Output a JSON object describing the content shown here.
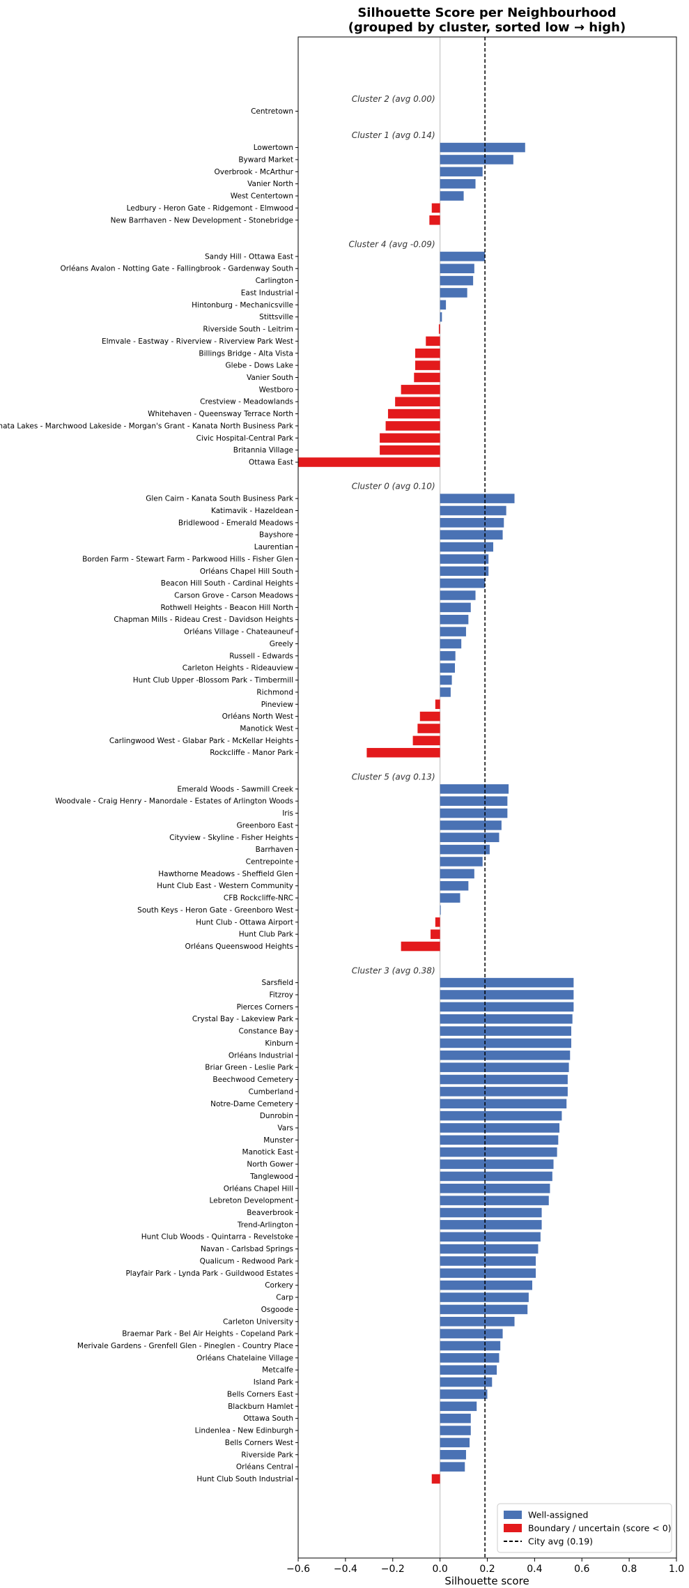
{
  "chart_data": {
    "type": "bar",
    "orientation": "horizontal",
    "title": "Silhouette Score per Neighbourhood",
    "subtitle": "(grouped by cluster, sorted low → high)",
    "xlabel": "Silhouette score",
    "xlim": [
      -0.6,
      1.0
    ],
    "xticks": [
      "−0.6",
      "−0.4",
      "−0.2",
      "0.0",
      "0.2",
      "0.4",
      "0.6",
      "0.8",
      "1.0"
    ],
    "xtick_values": [
      -0.6,
      -0.4,
      -0.2,
      0.0,
      0.2,
      0.4,
      0.6,
      0.8,
      1.0
    ],
    "city_avg": 0.19,
    "grid": false,
    "legend_position": "lower-right",
    "colors": {
      "well_assigned": "#4a72b4",
      "boundary": "#e31a1c",
      "avg_line": "#000000",
      "zero_line": "#bbbbbb"
    },
    "legend": [
      {
        "key": "well_assigned",
        "label": "Well-assigned",
        "kind": "patch"
      },
      {
        "key": "boundary",
        "label": "Boundary / uncertain (score < 0)",
        "kind": "patch"
      },
      {
        "key": "avg_line",
        "label": "City avg (0.19)",
        "kind": "dashed"
      }
    ],
    "clusters": [
      {
        "label": "Cluster 2  (avg 0.00)",
        "items": [
          {
            "name": "Centretown",
            "value": 0.0
          }
        ]
      },
      {
        "label": "Cluster 1  (avg 0.14)",
        "items": [
          {
            "name": "Lowertown",
            "value": 0.36
          },
          {
            "name": "Byward Market",
            "value": 0.31
          },
          {
            "name": "Overbrook - McArthur",
            "value": 0.18
          },
          {
            "name": "Vanier North",
            "value": 0.15
          },
          {
            "name": "West Centertown",
            "value": 0.1
          },
          {
            "name": "Ledbury - Heron Gate - Ridgemont - Elmwood",
            "value": -0.035
          },
          {
            "name": "New Barrhaven - New Development - Stonebridge",
            "value": -0.045
          }
        ]
      },
      {
        "label": "Cluster 4  (avg -0.09)",
        "items": [
          {
            "name": "Sandy Hill - Ottawa East",
            "value": 0.19
          },
          {
            "name": "Orléans Avalon - Notting Gate - Fallingbrook - Gardenway South",
            "value": 0.145
          },
          {
            "name": "Carlington",
            "value": 0.14
          },
          {
            "name": "East Industrial",
            "value": 0.115
          },
          {
            "name": "Hintonburg - Mechanicsville",
            "value": 0.025
          },
          {
            "name": "Stittsville",
            "value": 0.008
          },
          {
            "name": "Riverside South - Leitrim",
            "value": -0.005
          },
          {
            "name": "Elmvale - Eastway - Riverview - Riverview Park West",
            "value": -0.06
          },
          {
            "name": "Billings Bridge - Alta Vista",
            "value": -0.105
          },
          {
            "name": "Glebe - Dows Lake",
            "value": -0.105
          },
          {
            "name": "Vanier South",
            "value": -0.11
          },
          {
            "name": "Westboro",
            "value": -0.165
          },
          {
            "name": "Crestview - Meadowlands",
            "value": -0.19
          },
          {
            "name": "Whitehaven - Queensway Terrace North",
            "value": -0.22
          },
          {
            "name": "Kanata Lakes - Marchwood Lakeside - Morgan's Grant - Kanata North Business Park",
            "value": -0.23
          },
          {
            "name": "Civic Hospital-Central Park",
            "value": -0.255
          },
          {
            "name": "Britannia Village",
            "value": -0.255
          },
          {
            "name": "Ottawa East",
            "value": -0.6
          }
        ]
      },
      {
        "label": "Cluster 0  (avg 0.10)",
        "items": [
          {
            "name": "Glen Cairn - Kanata South Business Park",
            "value": 0.315
          },
          {
            "name": "Katimavik - Hazeldean",
            "value": 0.28
          },
          {
            "name": "Bridlewood - Emerald Meadows",
            "value": 0.27
          },
          {
            "name": "Bayshore",
            "value": 0.265
          },
          {
            "name": "Laurentian",
            "value": 0.225
          },
          {
            "name": "Borden Farm - Stewart Farm - Parkwood Hills - Fisher Glen",
            "value": 0.205
          },
          {
            "name": "Orléans Chapel Hill South",
            "value": 0.205
          },
          {
            "name": "Beacon Hill South - Cardinal Heights",
            "value": 0.19
          },
          {
            "name": "Carson Grove - Carson Meadows",
            "value": 0.15
          },
          {
            "name": "Rothwell Heights - Beacon Hill North",
            "value": 0.13
          },
          {
            "name": "Chapman Mills - Rideau Crest - Davidson Heights",
            "value": 0.12
          },
          {
            "name": "Orléans Village - Chateauneuf",
            "value": 0.11
          },
          {
            "name": "Greely",
            "value": 0.09
          },
          {
            "name": "Russell - Edwards",
            "value": 0.065
          },
          {
            "name": "Carleton Heights - Rideauview",
            "value": 0.063
          },
          {
            "name": "Hunt Club Upper -Blossom Park - Timbermill",
            "value": 0.05
          },
          {
            "name": "Richmond",
            "value": 0.045
          },
          {
            "name": "Pineview",
            "value": -0.02
          },
          {
            "name": "Orléans North West",
            "value": -0.085
          },
          {
            "name": "Manotick West",
            "value": -0.095
          },
          {
            "name": "Carlingwood West - Glabar Park - McKellar Heights",
            "value": -0.115
          },
          {
            "name": "Rockcliffe - Manor Park",
            "value": -0.31
          }
        ]
      },
      {
        "label": "Cluster 5  (avg 0.13)",
        "items": [
          {
            "name": "Emerald Woods - Sawmill Creek",
            "value": 0.29
          },
          {
            "name": "Woodvale - Craig Henry - Manordale - Estates of Arlington Woods",
            "value": 0.285
          },
          {
            "name": "Iris",
            "value": 0.285
          },
          {
            "name": "Greenboro East",
            "value": 0.26
          },
          {
            "name": "Cityview - Skyline - Fisher Heights",
            "value": 0.25
          },
          {
            "name": "Barrhaven",
            "value": 0.21
          },
          {
            "name": "Centrepointe",
            "value": 0.18
          },
          {
            "name": "Hawthorne Meadows - Sheffield Glen",
            "value": 0.145
          },
          {
            "name": "Hunt Club East - Western Community",
            "value": 0.12
          },
          {
            "name": "CFB Rockcliffe-NRC",
            "value": 0.085
          },
          {
            "name": "South Keys - Heron Gate - Greenboro West",
            "value": 0.003
          },
          {
            "name": "Hunt Club - Ottawa Airport",
            "value": -0.02
          },
          {
            "name": "Hunt Club Park",
            "value": -0.04
          },
          {
            "name": "Orléans Queenswood Heights",
            "value": -0.165
          }
        ]
      },
      {
        "label": "Cluster 3  (avg 0.38)",
        "items": [
          {
            "name": "Sarsfield",
            "value": 0.565
          },
          {
            "name": "Fitzroy",
            "value": 0.565
          },
          {
            "name": "Pierces Corners",
            "value": 0.565
          },
          {
            "name": "Crystal Bay - Lakeview Park",
            "value": 0.56
          },
          {
            "name": "Constance Bay",
            "value": 0.555
          },
          {
            "name": "Kinburn",
            "value": 0.555
          },
          {
            "name": "Orléans Industrial",
            "value": 0.55
          },
          {
            "name": "Briar Green - Leslie Park",
            "value": 0.545
          },
          {
            "name": "Beechwood Cemetery",
            "value": 0.54
          },
          {
            "name": "Cumberland",
            "value": 0.54
          },
          {
            "name": "Notre-Dame Cemetery",
            "value": 0.535
          },
          {
            "name": "Dunrobin",
            "value": 0.515
          },
          {
            "name": "Vars",
            "value": 0.505
          },
          {
            "name": "Munster",
            "value": 0.5
          },
          {
            "name": "Manotick East",
            "value": 0.495
          },
          {
            "name": "North Gower",
            "value": 0.48
          },
          {
            "name": "Tanglewood",
            "value": 0.475
          },
          {
            "name": "Orléans Chapel Hill",
            "value": 0.465
          },
          {
            "name": "Lebreton Development",
            "value": 0.46
          },
          {
            "name": "Beaverbrook",
            "value": 0.43
          },
          {
            "name": "Trend-Arlington",
            "value": 0.43
          },
          {
            "name": "Hunt Club Woods - Quintarra - Revelstoke",
            "value": 0.425
          },
          {
            "name": "Navan - Carlsbad Springs",
            "value": 0.415
          },
          {
            "name": "Qualicum - Redwood Park",
            "value": 0.405
          },
          {
            "name": "Playfair Park - Lynda Park - Guildwood Estates",
            "value": 0.405
          },
          {
            "name": "Corkery",
            "value": 0.39
          },
          {
            "name": "Carp",
            "value": 0.375
          },
          {
            "name": "Osgoode",
            "value": 0.37
          },
          {
            "name": "Carleton University",
            "value": 0.315
          },
          {
            "name": "Braemar Park - Bel Air Heights - Copeland Park",
            "value": 0.265
          },
          {
            "name": "Merivale Gardens - Grenfell Glen - Pineglen - Country Place",
            "value": 0.255
          },
          {
            "name": "Orléans Chatelaine Village",
            "value": 0.25
          },
          {
            "name": "Metcalfe",
            "value": 0.24
          },
          {
            "name": "Island Park",
            "value": 0.22
          },
          {
            "name": "Bells Corners East",
            "value": 0.2
          },
          {
            "name": "Blackburn Hamlet",
            "value": 0.155
          },
          {
            "name": "Ottawa South",
            "value": 0.13
          },
          {
            "name": "Lindenlea - New Edinburgh",
            "value": 0.13
          },
          {
            "name": "Bells Corners West",
            "value": 0.125
          },
          {
            "name": "Riverside Park",
            "value": 0.11
          },
          {
            "name": "Orléans Central",
            "value": 0.105
          },
          {
            "name": "Hunt Club South Industrial",
            "value": -0.035
          }
        ]
      }
    ]
  }
}
